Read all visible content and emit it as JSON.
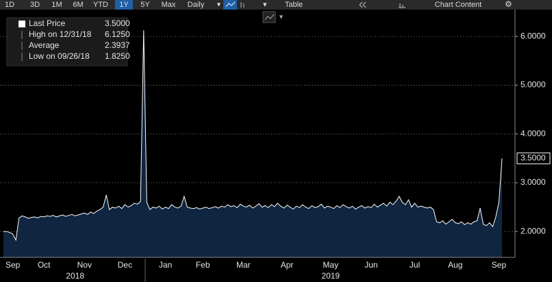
{
  "toolbar": {
    "ranges": [
      "1D",
      "3D",
      "1M",
      "6M",
      "YTD",
      "1Y",
      "5Y",
      "Max"
    ],
    "frequency": "Daily",
    "table": "Table",
    "content": "Chart Content"
  },
  "chart_data": {
    "type": "area",
    "legend": [
      {
        "label": "Last Price",
        "value": "3.5000"
      },
      {
        "label": "High on 12/31/18",
        "value": "6.1250"
      },
      {
        "label": "Average",
        "value": "2.3937"
      },
      {
        "label": "Low on 09/26/18",
        "value": "1.8250"
      }
    ],
    "last_price_label": "3.5000",
    "series": [
      {
        "name": "Last Price",
        "color": "#ffffff",
        "fill": "#0f2540",
        "values": [
          2.0,
          2.0,
          1.98,
          1.95,
          1.825,
          2.28,
          2.32,
          2.3,
          2.27,
          2.29,
          2.3,
          2.28,
          2.31,
          2.3,
          2.32,
          2.31,
          2.33,
          2.3,
          2.32,
          2.34,
          2.31,
          2.33,
          2.35,
          2.32,
          2.34,
          2.36,
          2.38,
          2.35,
          2.4,
          2.37,
          2.42,
          2.45,
          2.5,
          2.75,
          2.45,
          2.5,
          2.48,
          2.52,
          2.47,
          2.55,
          2.5,
          2.53,
          2.58,
          2.56,
          2.62,
          6.125,
          2.6,
          2.45,
          2.5,
          2.48,
          2.52,
          2.46,
          2.5,
          2.47,
          2.55,
          2.5,
          2.48,
          2.52,
          2.72,
          2.5,
          2.48,
          2.47,
          2.49,
          2.46,
          2.48,
          2.5,
          2.47,
          2.49,
          2.51,
          2.48,
          2.52,
          2.5,
          2.55,
          2.51,
          2.53,
          2.49,
          2.56,
          2.52,
          2.5,
          2.54,
          2.48,
          2.52,
          2.57,
          2.5,
          2.53,
          2.49,
          2.55,
          2.51,
          2.58,
          2.52,
          2.48,
          2.54,
          2.5,
          2.46,
          2.52,
          2.49,
          2.55,
          2.5,
          2.47,
          2.53,
          2.49,
          2.51,
          2.56,
          2.48,
          2.52,
          2.5,
          2.47,
          2.53,
          2.49,
          2.55,
          2.51,
          2.48,
          2.52,
          2.46,
          2.5,
          2.53,
          2.48,
          2.51,
          2.49,
          2.56,
          2.5,
          2.54,
          2.58,
          2.52,
          2.6,
          2.55,
          2.62,
          2.72,
          2.6,
          2.55,
          2.65,
          2.5,
          2.58,
          2.5,
          2.52,
          2.5,
          2.48,
          2.5,
          2.45,
          2.2,
          2.18,
          2.22,
          2.15,
          2.2,
          2.25,
          2.18,
          2.16,
          2.2,
          2.14,
          2.18,
          2.15,
          2.2,
          2.22,
          2.48,
          2.15,
          2.12,
          2.18,
          2.1,
          2.3,
          2.6,
          3.5
        ]
      }
    ],
    "xlim": [
      0,
      160
    ],
    "xticks": [
      {
        "value": 3,
        "label": "Sep"
      },
      {
        "value": 13,
        "label": "Oct"
      },
      {
        "value": 26,
        "label": "Nov"
      },
      {
        "value": 39,
        "label": "Dec"
      },
      {
        "value": 52,
        "label": "Jan"
      },
      {
        "value": 64,
        "label": "Feb"
      },
      {
        "value": 77,
        "label": "Mar"
      },
      {
        "value": 91,
        "label": "Apr"
      },
      {
        "value": 105,
        "label": "May"
      },
      {
        "value": 118,
        "label": "Jun"
      },
      {
        "value": 132,
        "label": "Jul"
      },
      {
        "value": 145,
        "label": "Aug"
      },
      {
        "value": 159,
        "label": "Sep"
      }
    ],
    "year_labels": [
      {
        "value": 23,
        "label": "2018"
      },
      {
        "value": 105,
        "label": "2019"
      }
    ],
    "ylim": [
      1.47,
      6.55
    ],
    "yticks": [
      {
        "value": 2,
        "label": "2.0000"
      },
      {
        "value": 3,
        "label": "3.0000"
      },
      {
        "value": 4,
        "label": "4.0000"
      },
      {
        "value": 5,
        "label": "5.0000"
      },
      {
        "value": 6,
        "label": "6.0000"
      }
    ],
    "grid": true
  }
}
